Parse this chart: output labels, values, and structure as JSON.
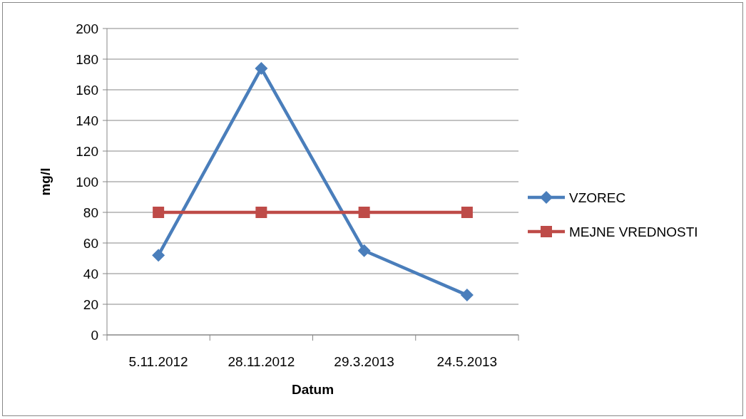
{
  "chart_data": {
    "type": "line",
    "xlabel": "Datum",
    "ylabel": "mg/l",
    "categories": [
      "5.11.2012",
      "28.11.2012",
      "29.3.2013",
      "24.5.2013"
    ],
    "series": [
      {
        "name": "VZOREC",
        "color": "#4a7ebb",
        "values": [
          52,
          174,
          55,
          26
        ],
        "marker": "diamond"
      },
      {
        "name": "MEJNE VREDNOSTI",
        "color": "#be4b48",
        "values": [
          80,
          80,
          80,
          80
        ],
        "marker": "square"
      }
    ],
    "ylim": [
      0,
      200
    ],
    "yticks": [
      0,
      20,
      40,
      60,
      80,
      100,
      120,
      140,
      160,
      180,
      200
    ],
    "grid": "y",
    "legend": "right",
    "line_style": "solid"
  }
}
